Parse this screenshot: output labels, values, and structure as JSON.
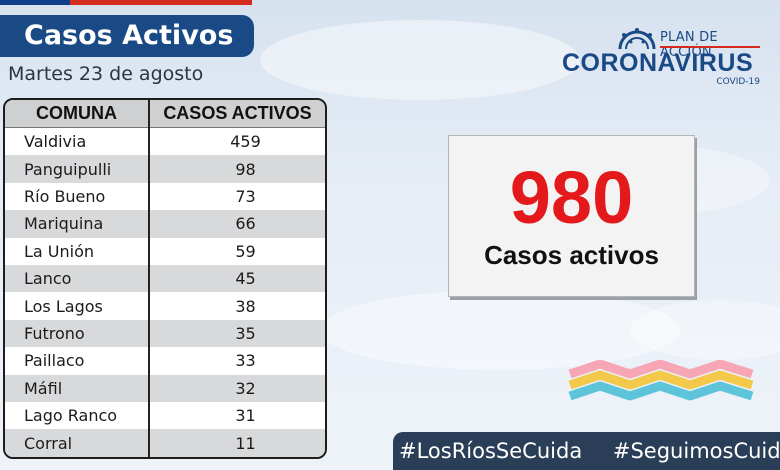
{
  "header": {
    "title": "Casos Activos",
    "date": "Martes 23 de agosto"
  },
  "logo": {
    "plan": "PLAN DE ACCIÓN",
    "name": "CORONAVIRUS",
    "sub": "COVID-19"
  },
  "table": {
    "headers": [
      "COMUNA",
      "CASOS ACTIVOS"
    ],
    "rows": [
      {
        "comuna": "Valdivia",
        "casos": "459"
      },
      {
        "comuna": "Panguipulli",
        "casos": "98"
      },
      {
        "comuna": "Río Bueno",
        "casos": "73"
      },
      {
        "comuna": "Mariquina",
        "casos": "66"
      },
      {
        "comuna": "La Unión",
        "casos": "59"
      },
      {
        "comuna": "Lanco",
        "casos": "45"
      },
      {
        "comuna": "Los Lagos",
        "casos": "38"
      },
      {
        "comuna": "Futrono",
        "casos": "35"
      },
      {
        "comuna": "Paillaco",
        "casos": "33"
      },
      {
        "comuna": "Máfil",
        "casos": "32"
      },
      {
        "comuna": "Lago Ranco",
        "casos": "31"
      },
      {
        "comuna": "Corral",
        "casos": "11"
      }
    ]
  },
  "total": {
    "value": "980",
    "label": "Casos activos"
  },
  "hashtags": [
    "#LosRíosSeCuida",
    "#SeguimosCuidándonos"
  ],
  "colors": {
    "title_bg": "#1a4a86",
    "total_number": "#e3191b",
    "hashtag_bg": "#2a3e57"
  },
  "icons": {
    "logo_icon": "virus-icon",
    "wave_icon": "wave-stripes-icon"
  }
}
